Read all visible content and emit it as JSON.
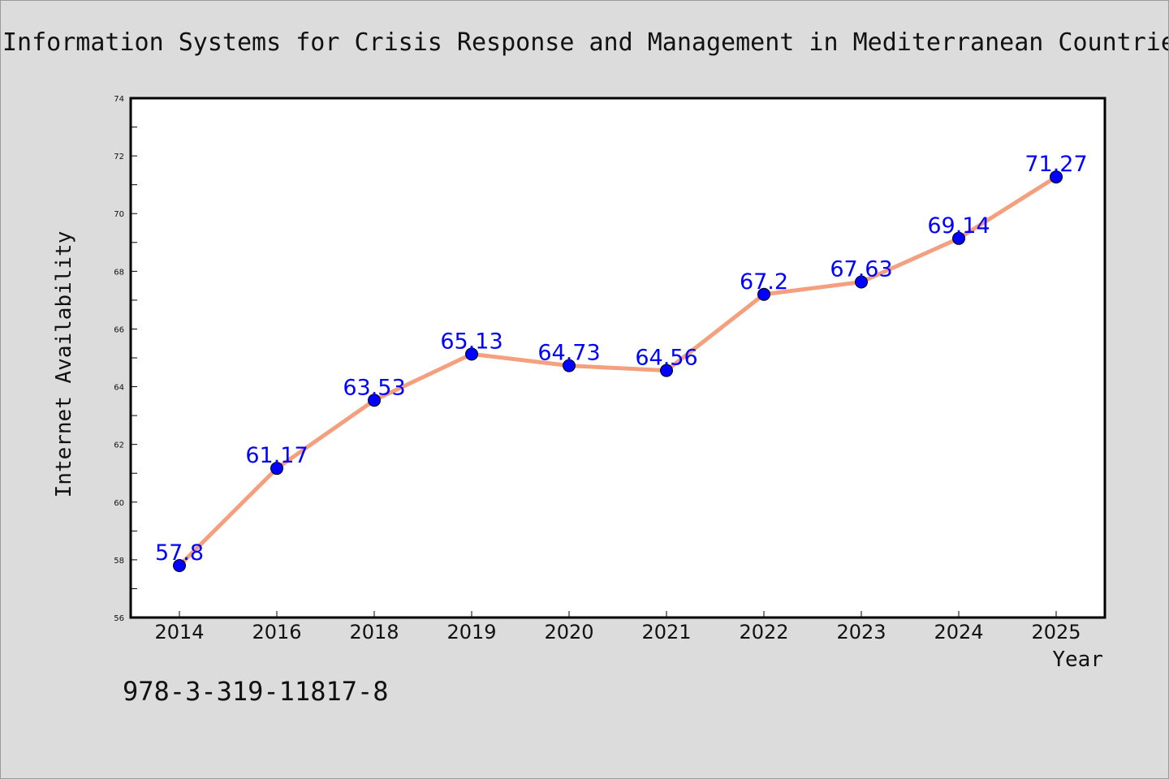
{
  "chart_data": {
    "type": "line",
    "title": "Information Systems for Crisis Response and Management in Mediterranean Countries",
    "xlabel": "Year",
    "ylabel": "Internet Availability",
    "categories": [
      "2014",
      "2016",
      "2018",
      "2019",
      "2020",
      "2021",
      "2022",
      "2023",
      "2024",
      "2025"
    ],
    "values": [
      57.8,
      61.17,
      63.53,
      65.13,
      64.73,
      64.56,
      67.2,
      67.63,
      69.14,
      71.27
    ],
    "point_labels": [
      "57.8",
      "61.17",
      "63.53",
      "65.13",
      "64.73",
      "64.56",
      "67.2",
      "67.63",
      "69.14",
      "71.27"
    ],
    "ylim": [
      56,
      74
    ],
    "yticks": [
      "56",
      "58",
      "60",
      "62",
      "64",
      "66",
      "68",
      "70",
      "72",
      "74"
    ],
    "grid": false,
    "legend": "none",
    "colors": {
      "line": "#f4a07e",
      "marker": "#0000ff",
      "label": "#0000ff",
      "plot_background": "#ffffff",
      "page_background": "#dcdcdc"
    }
  },
  "footer_text": "978-3-319-11817-8"
}
